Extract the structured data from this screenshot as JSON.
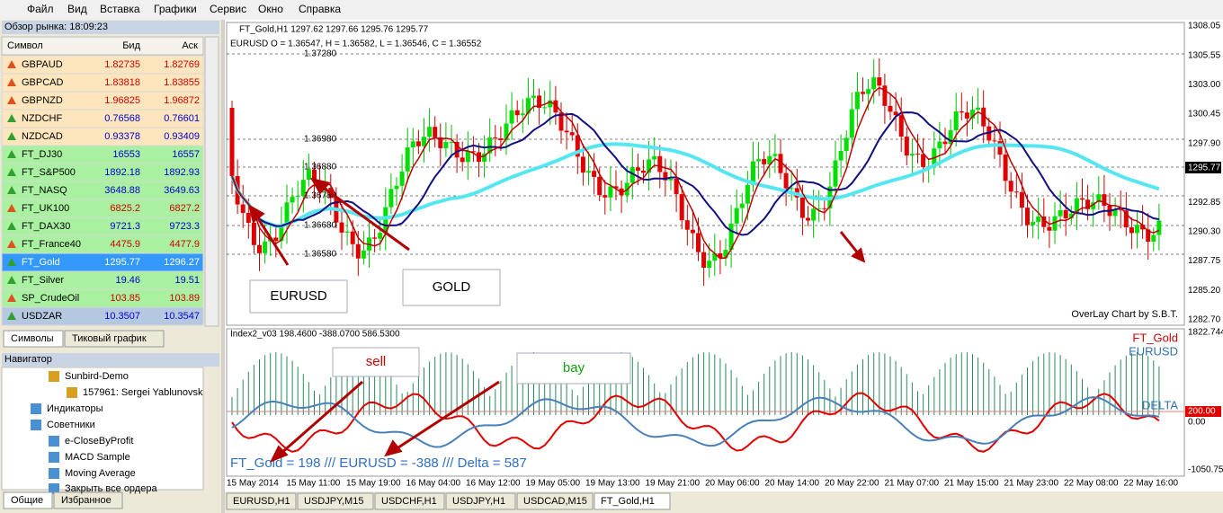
{
  "menu": [
    "Файл",
    "Вид",
    "Вставка",
    "Графики",
    "Сервис",
    "Окно",
    "Справка"
  ],
  "market_watch": {
    "title": "Обзор рынка: 18:09:23",
    "headers": [
      "Символ",
      "Бид",
      "Аск"
    ],
    "rows": [
      {
        "symbol": "GBPAUD",
        "bid": "1.82735",
        "ask": "1.82769",
        "row_color": "#fde6bd",
        "price_color": "#d00000"
      },
      {
        "symbol": "GBPCAD",
        "bid": "1.83818",
        "ask": "1.83855",
        "row_color": "#fde6bd",
        "price_color": "#d00000"
      },
      {
        "symbol": "GBPNZD",
        "bid": "1.96825",
        "ask": "1.96872",
        "row_color": "#fde6bd",
        "price_color": "#d00000"
      },
      {
        "symbol": "NZDCHF",
        "bid": "0.76568",
        "ask": "0.76601",
        "row_color": "#fde6bd",
        "price_color": "#0000d0"
      },
      {
        "symbol": "NZDCAD",
        "bid": "0.93378",
        "ask": "0.93409",
        "row_color": "#fde6bd",
        "price_color": "#0000d0"
      },
      {
        "symbol": "FT_DJ30",
        "bid": "16553",
        "ask": "16557",
        "row_color": "#a9f0a0",
        "price_color": "#0000d0"
      },
      {
        "symbol": "FT_S&P500",
        "bid": "1892.18",
        "ask": "1892.93",
        "row_color": "#a9f0a0",
        "price_color": "#0000d0"
      },
      {
        "symbol": "FT_NASQ",
        "bid": "3648.88",
        "ask": "3649.63",
        "row_color": "#a9f0a0",
        "price_color": "#0000d0"
      },
      {
        "symbol": "FT_UK100",
        "bid": "6825.2",
        "ask": "6827.2",
        "row_color": "#a9f0a0",
        "price_color": "#d00000"
      },
      {
        "symbol": "FT_DAX30",
        "bid": "9721.3",
        "ask": "9723.3",
        "row_color": "#a9f0a0",
        "price_color": "#0000d0"
      },
      {
        "symbol": "FT_France40",
        "bid": "4475.9",
        "ask": "4477.9",
        "row_color": "#a9f0a0",
        "price_color": "#d00000"
      },
      {
        "symbol": "FT_Gold",
        "bid": "1295.77",
        "ask": "1296.27",
        "row_color": "#3399ff",
        "price_color": "#ffffff"
      },
      {
        "symbol": "FT_Silver",
        "bid": "19.46",
        "ask": "19.51",
        "row_color": "#a9f0a0",
        "price_color": "#0000d0"
      },
      {
        "symbol": "SP_CrudeOil",
        "bid": "103.85",
        "ask": "103.89",
        "row_color": "#a9f0a0",
        "price_color": "#d00000"
      },
      {
        "symbol": "USDZAR",
        "bid": "10.3507",
        "ask": "10.3547",
        "row_color": "#b4c8e0",
        "price_color": "#0000d0"
      }
    ],
    "tabs": [
      "Символы",
      "Тиковый график"
    ]
  },
  "navigator": {
    "title": "Навигатор",
    "items": [
      "Sunbird-Demo",
      "157961: Sergei Yablunovsk",
      "Индикаторы",
      "Советники",
      "e-CloseByProfit",
      "MACD Sample",
      "Moving Average",
      "Закрыть все ордера"
    ],
    "tabs": [
      "Общие",
      "Избранное"
    ]
  },
  "chart": {
    "header": "FT_Gold,H1  1297.62 1297.66 1295.76 1295.77",
    "overlay_info": "EURUSD O = 1.36547, H = 1.36582, L = 1.36546, C = 1.36552",
    "price_labels": [
      "1308.05",
      "1305.55",
      "1303.00",
      "1300.45",
      "1297.90",
      "1295.77",
      "1292.85",
      "1290.30",
      "1287.75",
      "1285.20",
      "1282.70"
    ],
    "eurusd_labels": [
      "1.37280",
      "1.36980",
      "1.36880",
      "1.36780",
      "1.36680",
      "1.36580"
    ],
    "credit": "OverLay Chart by S.B.T.",
    "annotations": [
      "EURUSD",
      "GOLD",
      "sell",
      "bay"
    ],
    "indicator": {
      "header": "Index2_v03 198.4600 -388.0700 586.5300",
      "legend": [
        "FT_Gold",
        "EURUSD",
        "DELTA"
      ],
      "axis": [
        "1822.744",
        "200.00",
        "0.00",
        "-1050.754"
      ],
      "summary": "FT_Gold = 198 /// EURUSD = -388 /// Delta = 587"
    },
    "time_labels": [
      "15 May 2014",
      "15 May 11:00",
      "15 May 19:00",
      "16 May 04:00",
      "16 May 12:00",
      "19 May 05:00",
      "19 May 13:00",
      "19 May 21:00",
      "20 May 06:00",
      "20 May 14:00",
      "20 May 22:00",
      "21 May 07:00",
      "21 May 15:00",
      "21 May 23:00",
      "22 May 08:00",
      "22 May 16:00"
    ],
    "tabs": [
      "EURUSD,H1",
      "USDJPY,M15",
      "USDCHF,H1",
      "USDJPY,H1",
      "USDCAD,M15",
      "FT_Gold,H1"
    ]
  }
}
